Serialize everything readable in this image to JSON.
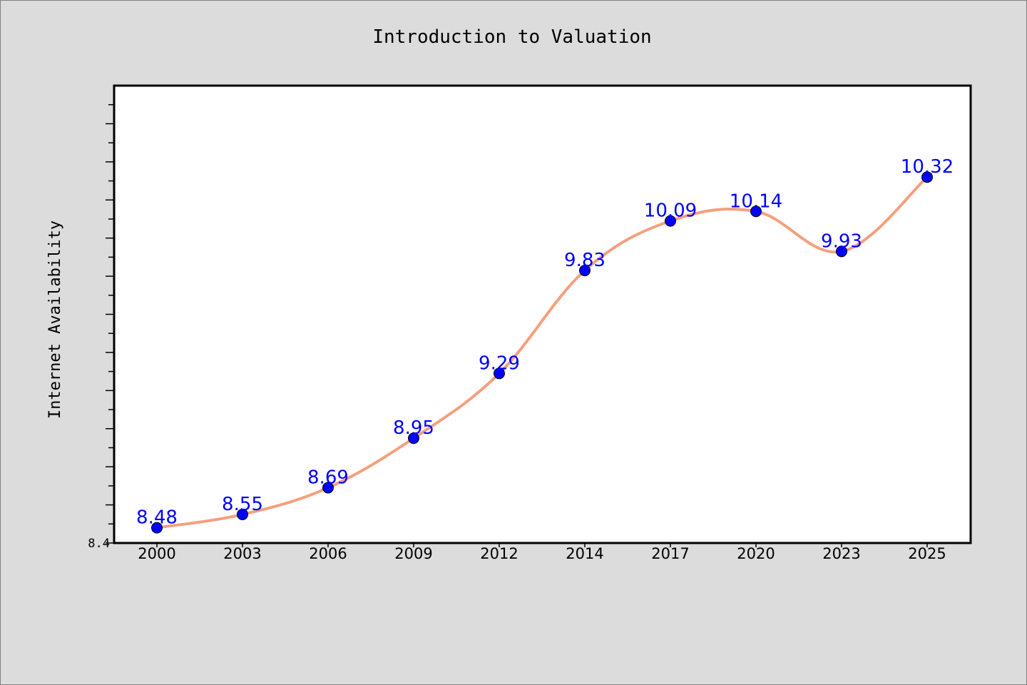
{
  "chart_data": {
    "type": "line",
    "title": "Introduction to Valuation",
    "xlabel": "",
    "ylabel": "Internet Availability",
    "categories": [
      "2000",
      "2003",
      "2006",
      "2009",
      "2012",
      "2014",
      "2017",
      "2020",
      "2023",
      "2025"
    ],
    "series": [
      {
        "values": [
          8.48,
          8.55,
          8.69,
          8.95,
          9.29,
          9.83,
          10.09,
          10.14,
          9.93,
          10.32
        ],
        "line_color": "#f4a07e",
        "marker_color": "#0000ff"
      }
    ],
    "data_labels": [
      "8.48",
      "8.55",
      "8.69",
      "8.95",
      "9.29",
      "9.83",
      "10.09",
      "10.14",
      "9.93",
      "10.32"
    ],
    "ylim": [
      8.4,
      10.8
    ],
    "ytick_labels": [
      "8.4"
    ],
    "grid": false,
    "legend": "none"
  }
}
